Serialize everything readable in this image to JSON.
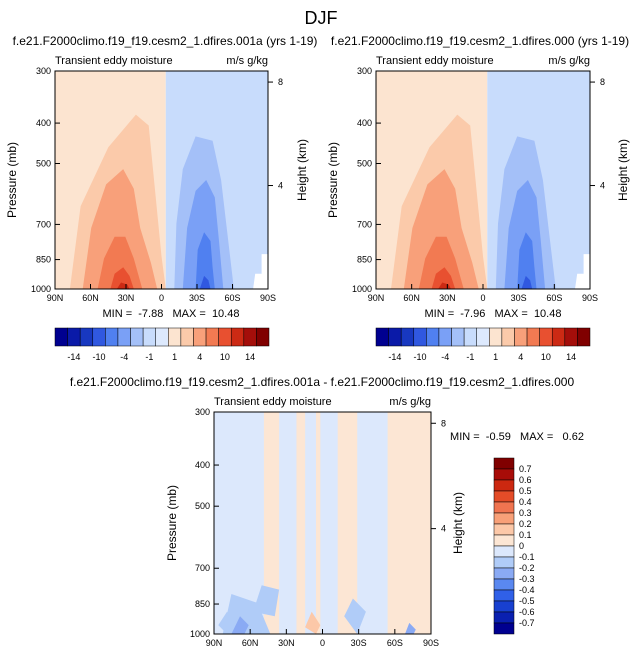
{
  "page_title": "DJF",
  "palette": {
    "full": [
      "#000090",
      "#0a1aa8",
      "#1838c0",
      "#3058e0",
      "#5080f0",
      "#7aa0f6",
      "#a4c0f8",
      "#c8dcfc",
      "#dde9fd",
      "#fce4d0",
      "#fbcaaa",
      "#f8a07a",
      "#f27a52",
      "#e85030",
      "#cc2a14",
      "#a40e0a",
      "#800000"
    ],
    "diff": [
      "#000090",
      "#0a20b0",
      "#1840d0",
      "#3060e8",
      "#5a88f0",
      "#8aaaf4",
      "#b0ccf8",
      "#dce8fc",
      "#fce6d4",
      "#fcc8a8",
      "#f8a078",
      "#f07450",
      "#e44c28",
      "#cc2810",
      "#a80c08",
      "#800000"
    ]
  },
  "chart_data": [
    {
      "type": "heatmap",
      "title": "f.e21.F2000climo.f19_f19.cesm2_1.dfires.001a (yrs 1-19)",
      "left_string": "Transient eddy moisture",
      "right_string": "m/s g/kg",
      "ylabel": "Pressure (mb)",
      "ylabel_right": "Height (km)",
      "xticks": [
        "90N",
        "60N",
        "30N",
        "0",
        "30S",
        "60S",
        "90S"
      ],
      "yticks": [
        "300",
        "400",
        "500",
        "700",
        "850",
        "1000"
      ],
      "ylim": [
        1000,
        300
      ],
      "yticks_right": [
        "8",
        "4"
      ],
      "stats": "MIN =  -7.88   MAX =  10.48",
      "colorbar_labels": [
        "-14",
        "-10",
        "-4",
        "-1",
        "1",
        "4",
        "10",
        "14"
      ],
      "features": [
        {
          "sign": "positive",
          "level": 10.48,
          "lat": 35,
          "p": 1000
        },
        {
          "sign": "negative",
          "level": -7.88,
          "lat": -45,
          "p": 1000
        }
      ]
    },
    {
      "type": "heatmap",
      "title": "f.e21.F2000climo.f19_f19.cesm2_1.dfires.000 (yrs 1-19)",
      "left_string": "Transient eddy moisture",
      "right_string": "m/s g/kg",
      "ylabel": "Pressure (mb)",
      "ylabel_right": "Height (km)",
      "xticks": [
        "90N",
        "60N",
        "30N",
        "0",
        "30S",
        "60S",
        "90S"
      ],
      "yticks": [
        "300",
        "400",
        "500",
        "700",
        "850",
        "1000"
      ],
      "ylim": [
        1000,
        300
      ],
      "yticks_right": [
        "8",
        "4"
      ],
      "stats": "MIN =  -7.96   MAX =  10.48",
      "colorbar_labels": [
        "-14",
        "-10",
        "-4",
        "-1",
        "1",
        "4",
        "10",
        "14"
      ],
      "features": [
        {
          "sign": "positive",
          "level": 10.48,
          "lat": 35,
          "p": 1000
        },
        {
          "sign": "negative",
          "level": -7.96,
          "lat": -45,
          "p": 1000
        }
      ]
    },
    {
      "type": "heatmap",
      "title": "f.e21.F2000climo.f19_f19.cesm2_1.dfires.001a - f.e21.F2000climo.f19_f19.cesm2_1.dfires.000",
      "left_string": "Transient eddy moisture",
      "right_string": "m/s g/kg",
      "ylabel": "Pressure (mb)",
      "ylabel_right": "Height (km)",
      "xticks": [
        "90N",
        "60N",
        "30N",
        "0",
        "30S",
        "60S",
        "90S"
      ],
      "yticks": [
        "300",
        "400",
        "500",
        "700",
        "850",
        "1000"
      ],
      "ylim": [
        1000,
        300
      ],
      "yticks_right": [
        "8",
        "4"
      ],
      "stats": "MIN =  -0.59   MAX =   0.62",
      "colorbar_labels": [
        "0.7",
        "0.6",
        "0.5",
        "0.4",
        "0.3",
        "0.2",
        "0.1",
        "0",
        "-0.1",
        "-0.2",
        "-0.3",
        "-0.4",
        "-0.5",
        "-0.6",
        "-0.7"
      ]
    }
  ]
}
